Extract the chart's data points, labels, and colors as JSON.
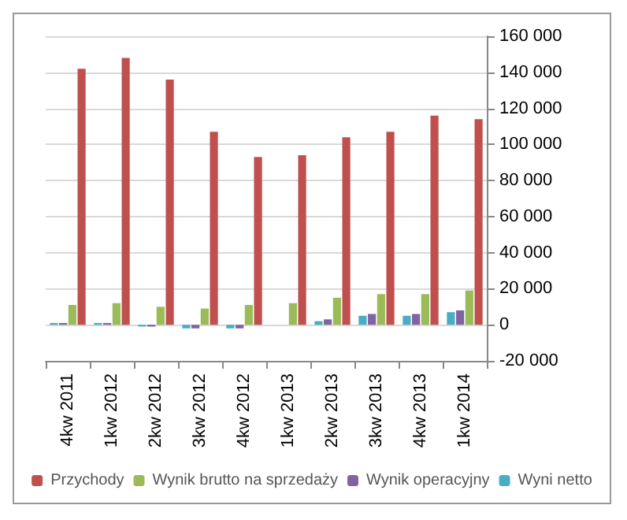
{
  "chart_data": {
    "type": "bar",
    "categories": [
      "4kw 2011",
      "1kw 2012",
      "2kw 2012",
      "3kw 2012",
      "4kw 2012",
      "1kw 2013",
      "2kw 2013",
      "3kw 2013",
      "4kw 2013",
      "1kw 2014"
    ],
    "series": [
      {
        "name": "Przychody",
        "color": "#c0504d",
        "values": [
          142000,
          148000,
          136000,
          107000,
          93000,
          94000,
          104000,
          107000,
          116000,
          114000
        ]
      },
      {
        "name": "Wynik brutto na sprzedaży",
        "color": "#9bbb59",
        "values": [
          11000,
          12000,
          10000,
          9000,
          11000,
          12000,
          15000,
          17000,
          17000,
          19000
        ]
      },
      {
        "name": "Wynik operacyjny",
        "color": "#8064a2",
        "values": [
          1000,
          1000,
          -1000,
          -2000,
          -2000,
          0,
          3000,
          6000,
          6000,
          8000
        ]
      },
      {
        "name": "Wyni netto",
        "color": "#4bacc6",
        "values": [
          1000,
          1000,
          -1000,
          -2000,
          -2000,
          0,
          2000,
          5000,
          5000,
          7000
        ]
      }
    ],
    "ylim": [
      -20000,
      160000
    ],
    "yticks": [
      {
        "value": -20000,
        "label": "-20 000"
      },
      {
        "value": 0,
        "label": "0"
      },
      {
        "value": 20000,
        "label": "20 000"
      },
      {
        "value": 40000,
        "label": "40 000"
      },
      {
        "value": 60000,
        "label": "60 000"
      },
      {
        "value": 80000,
        "label": "80 000"
      },
      {
        "value": 100000,
        "label": "100 000"
      },
      {
        "value": 120000,
        "label": "120 000"
      },
      {
        "value": 140000,
        "label": "140 000"
      },
      {
        "value": 160000,
        "label": "160 000"
      }
    ],
    "grid": "y",
    "legend": "bottom"
  }
}
